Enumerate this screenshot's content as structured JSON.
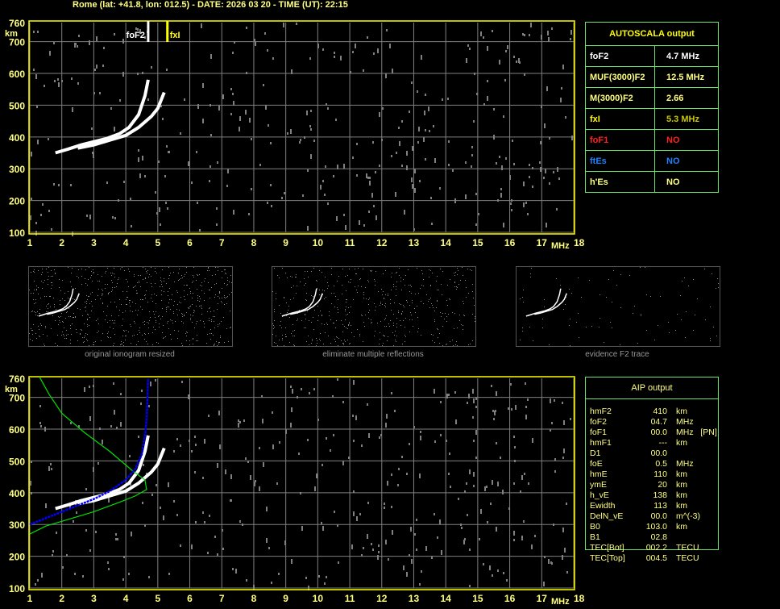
{
  "header": {
    "title": "Rome (lat: +41.8, lon: 012.5) - DATE: 2026 03 20 - TIME (UT): 22:15"
  },
  "colors": {
    "axis": "#ffff00",
    "grid": "#808080",
    "o_trace": "#ffffff",
    "profile": "#00e000",
    "aip_trace": "#0000ff",
    "table_border": "#6be36b"
  },
  "chart_data": [
    {
      "type": "scatter",
      "title": "",
      "xlabel": "MHz",
      "ylabel": "km",
      "xlim": [
        1,
        18
      ],
      "ylim": [
        100,
        760
      ],
      "grid": true,
      "xticks": [
        "1",
        "2",
        "3",
        "4",
        "5",
        "6",
        "7",
        "8",
        "9",
        "10",
        "11",
        "12",
        "13",
        "14",
        "15",
        "16",
        "17",
        "18"
      ],
      "yticks": [
        "100",
        "200",
        "300",
        "400",
        "500",
        "600",
        "700",
        "760"
      ],
      "markers": [
        {
          "name": "foF2",
          "x": 4.7,
          "color": "#ffffff"
        },
        {
          "name": "fxI",
          "x": 5.3,
          "color": "#ffff00"
        }
      ],
      "series": [
        {
          "x": [
            1.8,
            2.2,
            2.6,
            3.0,
            3.4,
            3.8,
            4.1,
            4.4,
            4.6,
            4.7
          ],
          "y": [
            350,
            362,
            375,
            385,
            395,
            410,
            430,
            470,
            530,
            580
          ]
        },
        {
          "x": [
            2.5,
            3.0,
            3.5,
            4.0,
            4.4,
            4.8,
            5.0,
            5.2
          ],
          "y": [
            365,
            375,
            390,
            405,
            430,
            465,
            490,
            540
          ]
        }
      ]
    },
    {
      "type": "scatter",
      "title": "",
      "xlabel": "MHz",
      "ylabel": "km",
      "xlim": [
        1,
        18
      ],
      "ylim": [
        100,
        760
      ],
      "grid": true,
      "xticks": [
        "1",
        "2",
        "3",
        "4",
        "5",
        "6",
        "7",
        "8",
        "9",
        "10",
        "11",
        "12",
        "13",
        "14",
        "15",
        "16",
        "17",
        "18"
      ],
      "yticks": [
        "100",
        "200",
        "300",
        "400",
        "500",
        "600",
        "700",
        "760"
      ],
      "series": [
        {
          "x": [
            1.8,
            2.2,
            2.6,
            3.0,
            3.4,
            3.8,
            4.1,
            4.4,
            4.6,
            4.7
          ],
          "y": [
            350,
            362,
            375,
            385,
            395,
            410,
            430,
            470,
            530,
            580
          ]
        },
        {
          "x": [
            2.5,
            3.0,
            3.5,
            4.0,
            4.4,
            4.8,
            5.0,
            5.2
          ],
          "y": [
            365,
            375,
            390,
            405,
            430,
            465,
            490,
            540
          ]
        },
        {
          "x": [
            1.0,
            1.5,
            2.0,
            3.0,
            3.8,
            4.3,
            4.65,
            4.6,
            4.2,
            3.5,
            2.7,
            2.0,
            1.6,
            1.3
          ],
          "y": [
            270,
            295,
            310,
            340,
            370,
            390,
            410,
            440,
            470,
            530,
            590,
            650,
            710,
            765
          ]
        },
        {
          "x": [
            1.0,
            1.5,
            2.0,
            2.5,
            3.0,
            3.5,
            4.0,
            4.3,
            4.5,
            4.6,
            4.65,
            4.7
          ],
          "y": [
            300,
            320,
            340,
            360,
            380,
            405,
            440,
            475,
            520,
            580,
            630,
            760
          ]
        }
      ]
    }
  ],
  "thumbnails": [
    {
      "caption": "original ionogram resized"
    },
    {
      "caption": "eliminate multiple reflections"
    },
    {
      "caption": "evidence F2 trace"
    }
  ],
  "autoscala": {
    "title": "AUTOSCALA output",
    "rows": [
      {
        "label": "foF2",
        "value": "4.7 MHz",
        "color": "#ffffff",
        "vcolor": "#ffffff"
      },
      {
        "label": "MUF(3000)F2",
        "value": "12.5 MHz",
        "color": "#ffff80",
        "vcolor": "#ffff80"
      },
      {
        "label": "M(3000)F2",
        "value": "2.66",
        "color": "#ffff80",
        "vcolor": "#ffff80"
      },
      {
        "label": "fxI",
        "value": "5.3 MHz",
        "color": "#ffff00",
        "vcolor": "#c8c800"
      },
      {
        "label": "foF1",
        "value": "NO",
        "color": "#ff2020",
        "vcolor": "#ff2020"
      },
      {
        "label": "ftEs",
        "value": "NO",
        "color": "#2080ff",
        "vcolor": "#2080ff"
      },
      {
        "label": "h'Es",
        "value": "NO",
        "color": "#ffff80",
        "vcolor": "#ffff80"
      }
    ]
  },
  "aip": {
    "title": "AIP output",
    "rows": [
      {
        "label": "hmF2",
        "value": "410",
        "unit": "km"
      },
      {
        "label": "foF2",
        "value": "04.7",
        "unit": "MHz"
      },
      {
        "label": "foF1",
        "value": "00.0",
        "unit": "MHz   [PN]"
      },
      {
        "label": "hmF1",
        "value": "---",
        "unit": "km"
      },
      {
        "label": "D1",
        "value": "00.0",
        "unit": ""
      },
      {
        "label": "foE",
        "value": "0.5",
        "unit": "MHz"
      },
      {
        "label": "hmE",
        "value": "110",
        "unit": "km"
      },
      {
        "label": "ymE",
        "value": "20",
        "unit": "km"
      },
      {
        "label": "h_vE",
        "value": "138",
        "unit": "km"
      },
      {
        "label": "Ewidth",
        "value": "113",
        "unit": "km"
      },
      {
        "label": "DelN_vE",
        "value": "00.0",
        "unit": "m^(-3)"
      },
      {
        "label": "B0",
        "value": "103.0",
        "unit": "km"
      },
      {
        "label": "B1",
        "value": "02.8",
        "unit": ""
      },
      {
        "label": "TEC[Bot]",
        "value": "002.2",
        "unit": "TECU"
      },
      {
        "label": "TEC[Top]",
        "value": "004.5",
        "unit": "TECU"
      }
    ]
  }
}
